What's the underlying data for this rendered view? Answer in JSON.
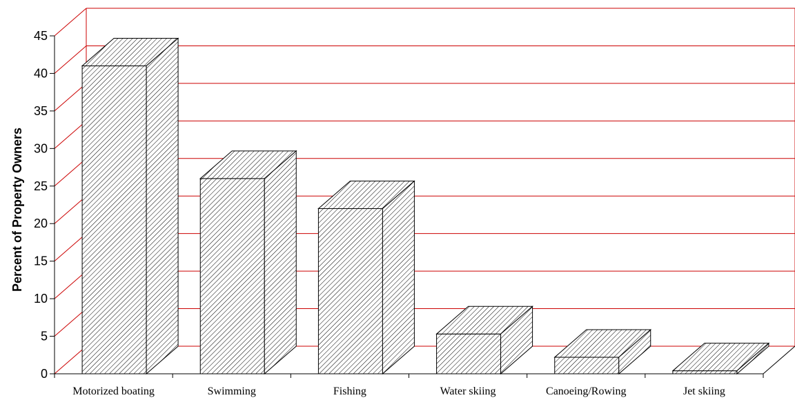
{
  "chart_data": {
    "type": "bar",
    "style": "3d",
    "categories": [
      "Motorized boating",
      "Swimming",
      "Fishing",
      "Water skiing",
      "Canoeing/Rowing",
      "Jet skiing"
    ],
    "values": [
      41,
      26,
      22,
      5.3,
      2.2,
      0.4
    ],
    "title": "",
    "xlabel": "",
    "ylabel": "Percent of Property Owners",
    "ylim": [
      0,
      45
    ],
    "yticks": [
      0,
      5,
      10,
      15,
      20,
      25,
      30,
      35,
      40,
      45
    ],
    "grid": true,
    "legend": "none",
    "colors": {
      "grid": "#cc0000",
      "bar_outline": "#000000",
      "bar_fill": "#ffffff",
      "hatch": "#000000"
    }
  }
}
